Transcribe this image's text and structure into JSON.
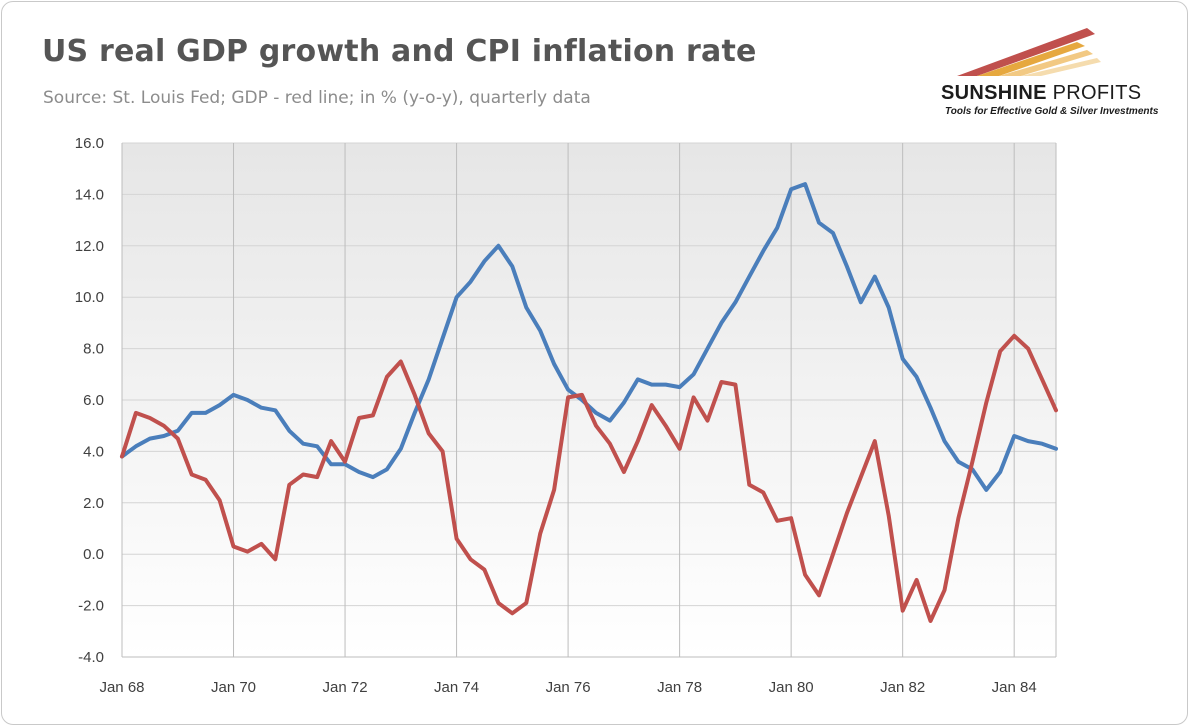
{
  "header": {
    "title": "US real GDP growth and CPI inflation rate",
    "subtitle": "Source: St. Louis Fed; GDP - red line; in % (y-o-y), quarterly data"
  },
  "logo": {
    "brand_part1": "SUNSHINE",
    "brand_part2": "PROFITS",
    "tagline": "Tools for Effective Gold & Silver Investments",
    "colors": {
      "red": "#c0392b",
      "gold": "#e8b04a"
    }
  },
  "chart_data": {
    "type": "line",
    "title": "US real GDP growth and CPI inflation rate",
    "subtitle": "Source: St. Louis Fed; GDP - red line; in % (y-o-y), quarterly data",
    "xlabel": "",
    "ylabel": "",
    "ylim": [
      -4.0,
      16.0
    ],
    "yticks": [
      "16.0",
      "14.0",
      "12.0",
      "10.0",
      "8.0",
      "6.0",
      "4.0",
      "2.0",
      "0.0",
      "-2.0",
      "-4.0"
    ],
    "xticks": [
      "Jan 68",
      "Jan 70",
      "Jan 72",
      "Jan 74",
      "Jan 76",
      "Jan 78",
      "Jan 80",
      "Jan 82",
      "Jan 84"
    ],
    "x_start": "Jan 68",
    "frequency": "quarterly",
    "grid": true,
    "legend": "none",
    "series": [
      {
        "color": "#4a7ebb",
        "values": [
          3.8,
          4.2,
          4.5,
          4.6,
          4.8,
          5.5,
          5.5,
          5.8,
          6.2,
          6.0,
          5.7,
          5.6,
          4.8,
          4.3,
          4.2,
          3.5,
          3.5,
          3.2,
          3.0,
          3.3,
          4.1,
          5.5,
          6.8,
          8.4,
          10.0,
          10.6,
          11.4,
          12.0,
          11.2,
          9.6,
          8.7,
          7.4,
          6.4,
          6.0,
          5.5,
          5.2,
          5.9,
          6.8,
          6.6,
          6.6,
          6.5,
          7.0,
          8.0,
          9.0,
          9.8,
          10.8,
          11.8,
          12.7,
          14.2,
          14.4,
          12.9,
          12.5,
          11.2,
          9.8,
          10.8,
          9.6,
          7.6,
          6.9,
          5.7,
          4.4,
          3.6,
          3.3,
          2.5,
          3.2,
          4.6,
          4.4,
          4.3,
          4.1
        ]
      },
      {
        "color": "#c0504d",
        "values": [
          3.8,
          5.5,
          5.3,
          5.0,
          4.5,
          3.1,
          2.9,
          2.1,
          0.3,
          0.1,
          0.4,
          -0.2,
          2.7,
          3.1,
          3.0,
          4.4,
          3.6,
          5.3,
          5.4,
          6.9,
          7.5,
          6.2,
          4.7,
          4.0,
          0.6,
          -0.2,
          -0.6,
          -1.9,
          -2.3,
          -1.9,
          0.8,
          2.5,
          6.1,
          6.2,
          5.0,
          4.3,
          3.2,
          4.4,
          5.8,
          5.0,
          4.1,
          6.1,
          5.2,
          6.7,
          6.6,
          2.7,
          2.4,
          1.3,
          1.4,
          -0.8,
          -1.6,
          0.0,
          1.6,
          3.0,
          4.4,
          1.5,
          -2.2,
          -1.0,
          -2.6,
          -1.4,
          1.4,
          3.6,
          5.9,
          7.9,
          8.5,
          8.0,
          6.8,
          5.6
        ]
      }
    ]
  }
}
